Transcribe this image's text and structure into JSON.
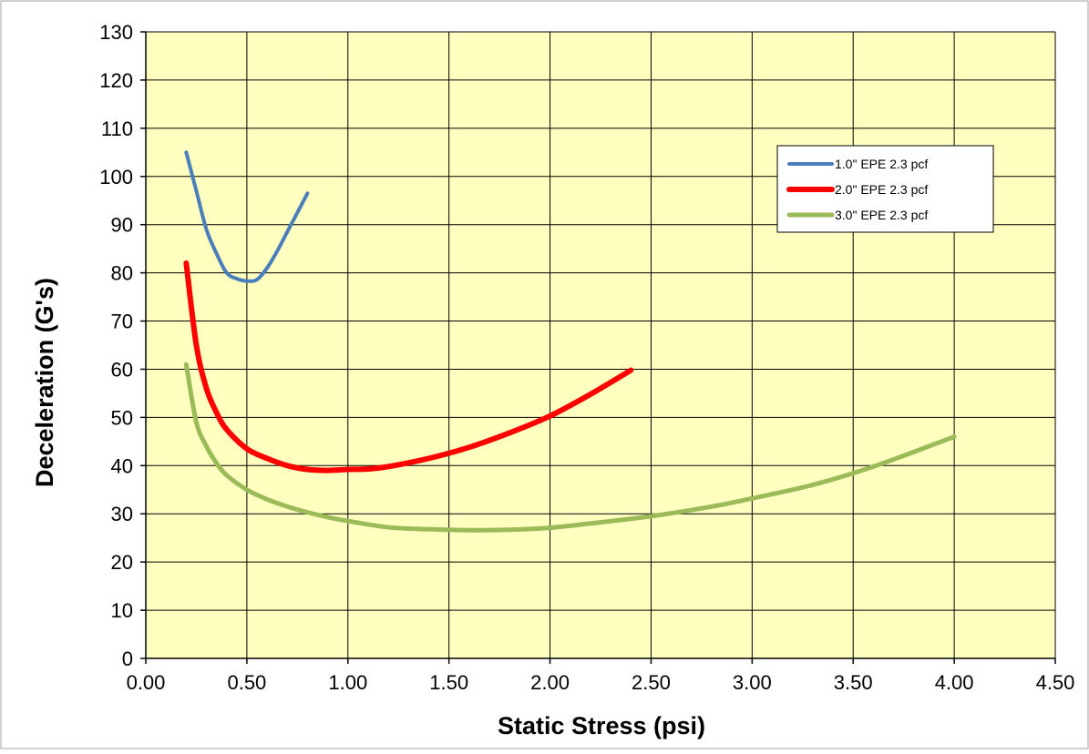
{
  "chart_data": {
    "type": "line",
    "title": "",
    "xlabel": "Static Stress (psi)",
    "ylabel": "Deceleration (G's)",
    "xlim": [
      0,
      4.5
    ],
    "ylim": [
      0,
      130
    ],
    "x_ticks": [
      0,
      0.5,
      1.0,
      1.5,
      2.0,
      2.5,
      3.0,
      3.5,
      4.0,
      4.5
    ],
    "x_tick_labels": [
      "0.00",
      "0.50",
      "1.00",
      "1.50",
      "2.00",
      "2.50",
      "3.00",
      "3.50",
      "4.00",
      "4.50"
    ],
    "y_ticks": [
      0,
      10,
      20,
      30,
      40,
      50,
      60,
      70,
      80,
      90,
      100,
      110,
      120,
      130
    ],
    "y_tick_labels": [
      "0",
      "10",
      "20",
      "30",
      "40",
      "50",
      "60",
      "70",
      "80",
      "90",
      "100",
      "110",
      "120",
      "130"
    ],
    "grid": true,
    "plot_background": "#ffffc0",
    "legend_position": "top-right",
    "series": [
      {
        "name": "1.0\" EPE 2.3 pcf",
        "color": "#4a7ebb",
        "width": 4,
        "x": [
          0.2,
          0.25,
          0.3,
          0.35,
          0.4,
          0.45,
          0.5,
          0.55,
          0.6,
          0.65,
          0.7,
          0.75,
          0.8
        ],
        "y": [
          105,
          97,
          89,
          84,
          80,
          78.8,
          78.3,
          78.6,
          81,
          84.5,
          88.5,
          92.5,
          96.5
        ]
      },
      {
        "name": "2.0\" EPE 2.3 pcf",
        "color": "#ff0000",
        "width": 6,
        "x": [
          0.2,
          0.25,
          0.3,
          0.35,
          0.4,
          0.5,
          0.6,
          0.7,
          0.8,
          0.9,
          1.0,
          1.1,
          1.2,
          1.4,
          1.6,
          1.8,
          2.0,
          2.2,
          2.4
        ],
        "y": [
          82,
          65,
          56,
          51,
          47.5,
          43.5,
          41.5,
          40,
          39.2,
          39,
          39.2,
          39.3,
          39.8,
          41.5,
          43.8,
          46.8,
          50.3,
          54.8,
          59.8
        ]
      },
      {
        "name": "3.0\" EPE 2.3 pcf",
        "color": "#9bbb59",
        "width": 5,
        "x": [
          0.2,
          0.25,
          0.3,
          0.35,
          0.4,
          0.5,
          0.6,
          0.7,
          0.8,
          0.9,
          1.0,
          1.2,
          1.4,
          1.6,
          1.8,
          2.0,
          2.2,
          2.5,
          2.8,
          3.0,
          3.3,
          3.6,
          4.0
        ],
        "y": [
          61,
          49,
          44,
          40.5,
          38,
          35,
          33,
          31.5,
          30.3,
          29.3,
          28.5,
          27.2,
          26.8,
          26.6,
          26.7,
          27.1,
          28,
          29.5,
          31.5,
          33.2,
          36,
          39.8,
          46
        ]
      }
    ]
  }
}
